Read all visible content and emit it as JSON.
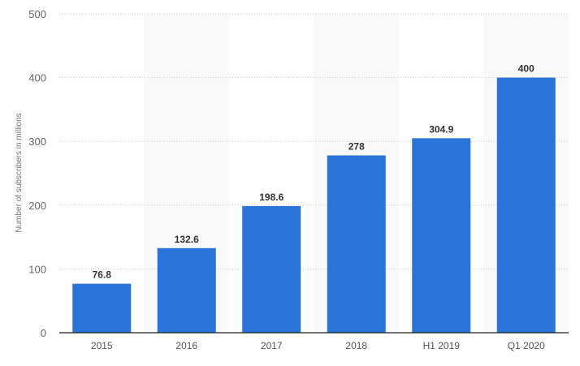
{
  "chart_data": {
    "type": "bar",
    "title": "",
    "xlabel": "",
    "ylabel": "Number of subscribers in millions",
    "categories": [
      "2015",
      "2016",
      "2017",
      "2018",
      "H1 2019",
      "Q1 2020"
    ],
    "values": [
      76.8,
      132.6,
      198.6,
      278,
      304.9,
      400
    ],
    "value_labels": [
      "76.8",
      "132.6",
      "198.6",
      "278",
      "304.9",
      "400"
    ],
    "ylim": [
      0,
      500
    ],
    "yticks": [
      "0",
      "100",
      "200",
      "300",
      "400",
      "500"
    ],
    "grid": true,
    "bar_color": "#2a74d9"
  }
}
